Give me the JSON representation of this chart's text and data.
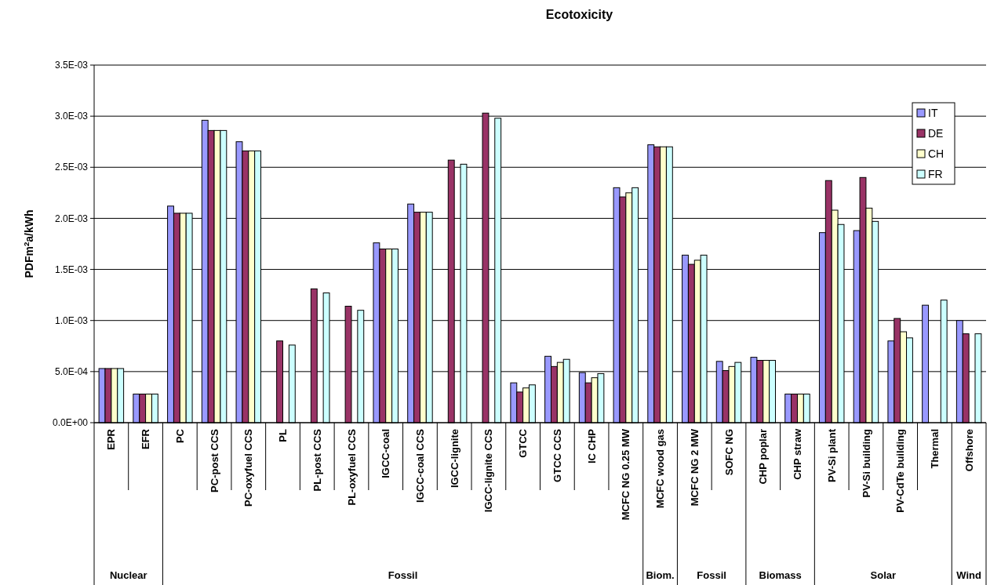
{
  "chart_data": {
    "type": "bar",
    "title": "Ecotoxicity",
    "ylabel": "PDFm$^{2}$a/kWh",
    "categories": [
      "EPR",
      "EFR",
      "PC",
      "PC-post CCS",
      "PC-oxyfuel CCS",
      "PL",
      "PL-post CCS",
      "PL-oxyfuel CCS",
      "IGCC-coal",
      "IGCC-coal CCS",
      "IGCC-lignite",
      "IGCC-lignite CCS",
      "GTCC",
      "GTCC CCS",
      "IC CHP",
      "MCFC NG 0.25 MW",
      "MCFC wood gas",
      "MCFC NG 2 MW",
      "SOFC NG",
      "CHP poplar",
      "CHP straw",
      "PV-Si plant",
      "PV-Si building",
      "PV-CdTe building",
      "Thermal",
      "Offshore"
    ],
    "series": [
      {
        "name": "IT",
        "color": "#9999ff",
        "values": [
          0.00053,
          0.00028,
          0.00212,
          0.00296,
          0.00275,
          null,
          null,
          null,
          0.00176,
          0.00214,
          null,
          null,
          0.00039,
          0.00065,
          0.00049,
          0.0023,
          0.00272,
          0.00164,
          0.0006,
          0.00064,
          0.00028,
          0.00186,
          0.00188,
          0.0008,
          0.00115,
          0.001
        ]
      },
      {
        "name": "DE",
        "color": "#993366",
        "values": [
          0.00053,
          0.00028,
          0.00205,
          0.00286,
          0.00266,
          0.0008,
          0.00131,
          0.00114,
          0.0017,
          0.00206,
          0.00257,
          0.00303,
          0.0003,
          0.00055,
          0.00039,
          0.00221,
          0.0027,
          0.00155,
          0.00051,
          0.00061,
          0.00028,
          0.00237,
          0.0024,
          0.00102,
          null,
          0.00087
        ]
      },
      {
        "name": "CH",
        "color": "#ffffcc",
        "values": [
          0.00053,
          0.00028,
          0.00205,
          0.00286,
          0.00266,
          null,
          null,
          null,
          0.0017,
          0.00206,
          null,
          null,
          0.00034,
          0.00059,
          0.00044,
          0.00225,
          0.0027,
          0.00159,
          0.00055,
          0.00061,
          0.00028,
          0.00208,
          0.0021,
          0.00089,
          null,
          null
        ]
      },
      {
        "name": "FR",
        "color": "#ccffff",
        "values": [
          0.00053,
          0.00028,
          0.00205,
          0.00286,
          0.00266,
          0.00076,
          0.00127,
          0.0011,
          0.0017,
          0.00206,
          0.00253,
          0.00298,
          0.00037,
          0.00062,
          0.00048,
          0.0023,
          0.0027,
          0.00164,
          0.00059,
          0.00061,
          0.00028,
          0.00194,
          0.00197,
          0.00083,
          0.0012,
          0.00087
        ]
      }
    ],
    "ylim": [
      0,
      0.0035
    ],
    "yticks": [
      {
        "value": 0,
        "label": "0.0E+00"
      },
      {
        "value": 0.0005,
        "label": "5.0E-04"
      },
      {
        "value": 0.001,
        "label": "1.0E-03"
      },
      {
        "value": 0.0015,
        "label": "1.5E-03"
      },
      {
        "value": 0.002,
        "label": "2.0E-03"
      },
      {
        "value": 0.0025,
        "label": "2.5E-03"
      },
      {
        "value": 0.003,
        "label": "3.0E-03"
      },
      {
        "value": 0.0035,
        "label": "3.5E-03"
      }
    ],
    "grid": "y",
    "legend": "top right",
    "annotations": [
      "Nuclear",
      "Fossil",
      "Biom.",
      "Fossil",
      "Biomass",
      "Solar",
      "Wind"
    ]
  }
}
